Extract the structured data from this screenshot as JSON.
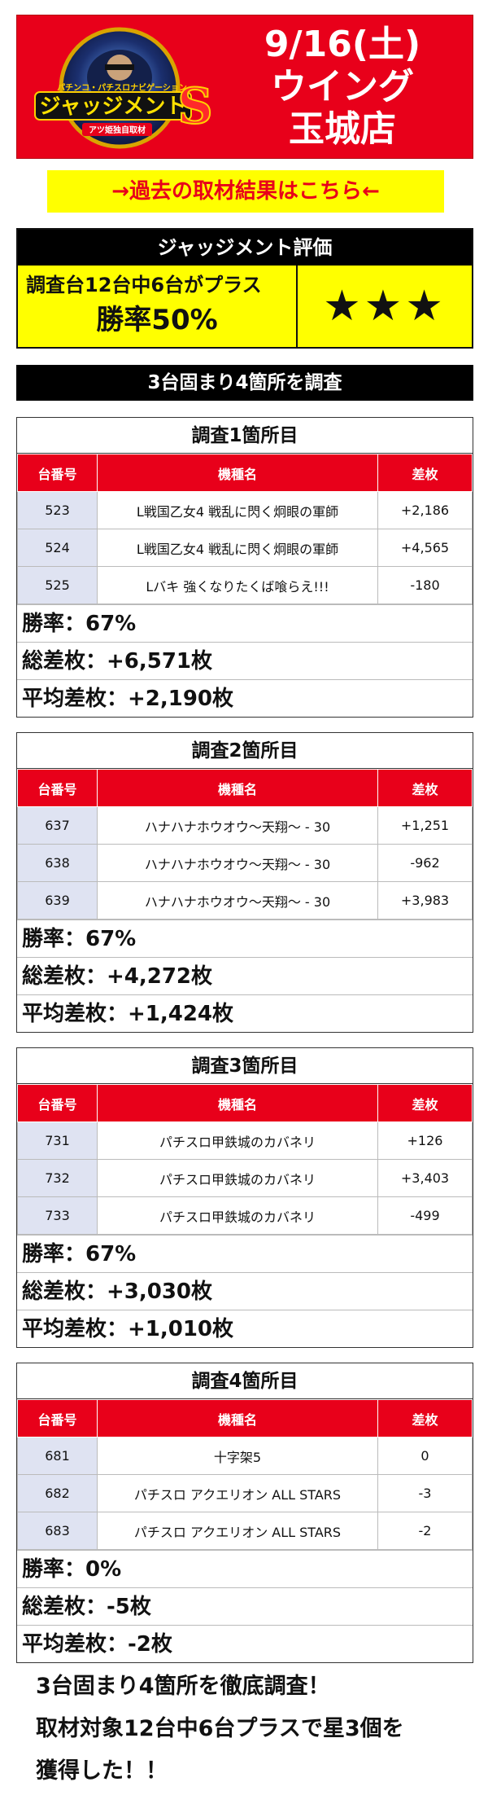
{
  "header": {
    "date": "9/16(土)",
    "store_line1": "ウイング",
    "store_line2": "玉城店",
    "logo": {
      "top": "パチンコ・パチスロナビゲーション",
      "main": "ジャッジメント",
      "badge": "アツ姫独自取材"
    }
  },
  "archive_link": "→過去の取材結果はこちら←",
  "evaluation": {
    "title": "ジャッジメント評価",
    "description": "調査台12台中6台がプラス",
    "win_rate": "勝率50%",
    "stars": "★★★"
  },
  "section_title": "3台固まり4箇所を調査",
  "columns": {
    "unit": "台番号",
    "model": "機種名",
    "diff": "差枚"
  },
  "surveys": [
    {
      "title": "調査1箇所目",
      "rows": [
        {
          "unit": "523",
          "model": "L戦国乙女4 戦乱に閃く炯眼の軍師",
          "diff": "+2,186"
        },
        {
          "unit": "524",
          "model": "L戦国乙女4 戦乱に閃く炯眼の軍師",
          "diff": "+4,565"
        },
        {
          "unit": "525",
          "model": "Lバキ 強くなりたくば喰らえ!!!",
          "diff": "-180"
        }
      ],
      "win_rate": "勝率：67%",
      "total": "総差枚：+6,571枚",
      "average": "平均差枚：+2,190枚"
    },
    {
      "title": "調査2箇所目",
      "rows": [
        {
          "unit": "637",
          "model": "ハナハナホウオウ～天翔～ - 30",
          "diff": "+1,251"
        },
        {
          "unit": "638",
          "model": "ハナハナホウオウ～天翔～ - 30",
          "diff": "-962"
        },
        {
          "unit": "639",
          "model": "ハナハナホウオウ～天翔～ - 30",
          "diff": "+3,983"
        }
      ],
      "win_rate": "勝率：67%",
      "total": "総差枚：+4,272枚",
      "average": "平均差枚：+1,424枚"
    },
    {
      "title": "調査3箇所目",
      "rows": [
        {
          "unit": "731",
          "model": "パチスロ甲鉄城のカバネリ",
          "diff": "+126"
        },
        {
          "unit": "732",
          "model": "パチスロ甲鉄城のカバネリ",
          "diff": "+3,403"
        },
        {
          "unit": "733",
          "model": "パチスロ甲鉄城のカバネリ",
          "diff": "-499"
        }
      ],
      "win_rate": "勝率：67%",
      "total": "総差枚：+3,030枚",
      "average": "平均差枚：+1,010枚"
    },
    {
      "title": "調査4箇所目",
      "rows": [
        {
          "unit": "681",
          "model": "十字架5",
          "diff": "0"
        },
        {
          "unit": "682",
          "model": "パチスロ アクエリオン ALL STARS",
          "diff": "-3"
        },
        {
          "unit": "683",
          "model": "パチスロ アクエリオン ALL STARS",
          "diff": "-2"
        }
      ],
      "win_rate": "勝率：0%",
      "total": "総差枚：-5枚",
      "average": "平均差枚：-2枚"
    }
  ],
  "closing": {
    "line1": "3台固まり4箇所を徹底調査！",
    "line2": "取材対象12台中6台プラスで星3個を",
    "line3": "獲得した！！"
  }
}
